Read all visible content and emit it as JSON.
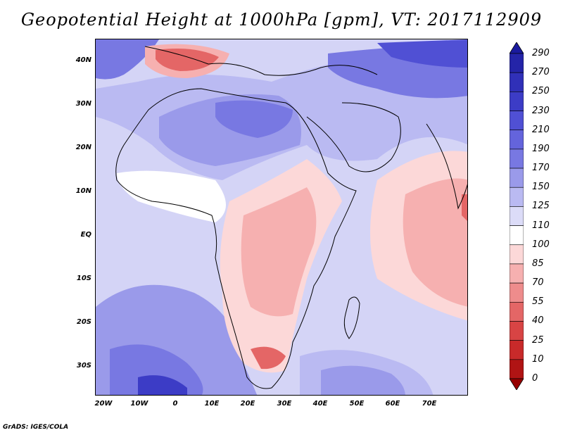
{
  "title": "Geopotential Height at 1000hPa [gpm], VT: 2017112909",
  "credit": "GrADS: IGES/COLA",
  "y_axis_labels": [
    "40N",
    "30N",
    "20N",
    "10N",
    "EQ",
    "10S",
    "20S",
    "30S"
  ],
  "x_axis_labels": [
    "20W",
    "10W",
    "0",
    "10E",
    "20E",
    "30E",
    "40E",
    "50E",
    "60E",
    "70E"
  ],
  "colorbar": {
    "labels": [
      "290",
      "270",
      "250",
      "230",
      "210",
      "190",
      "170",
      "150",
      "125",
      "110",
      "100",
      "85",
      "70",
      "55",
      "40",
      "25",
      "10",
      "0"
    ],
    "colors": [
      "#1a1a9e",
      "#2424a8",
      "#3030b8",
      "#3c3cc6",
      "#5050d4",
      "#6464dc",
      "#7878e2",
      "#9a9aea",
      "#babaf2",
      "#dcdcf8",
      "#ffffff",
      "#fcd8d8",
      "#f6b0b0",
      "#ee8c8c",
      "#e46666",
      "#d84444",
      "#c82a2a",
      "#b01414",
      "#960000"
    ]
  },
  "map_colors": {
    "ocean": "#d4d4f6",
    "mid_blue": "#9a9aea",
    "deep_blue": "#5050d4",
    "darkest_blue": "#3030b8",
    "white": "#ffffff",
    "light_red": "#fcd8d8",
    "mid_red": "#f6b0b0",
    "strong_red": "#e46666",
    "coast": "#000000"
  }
}
